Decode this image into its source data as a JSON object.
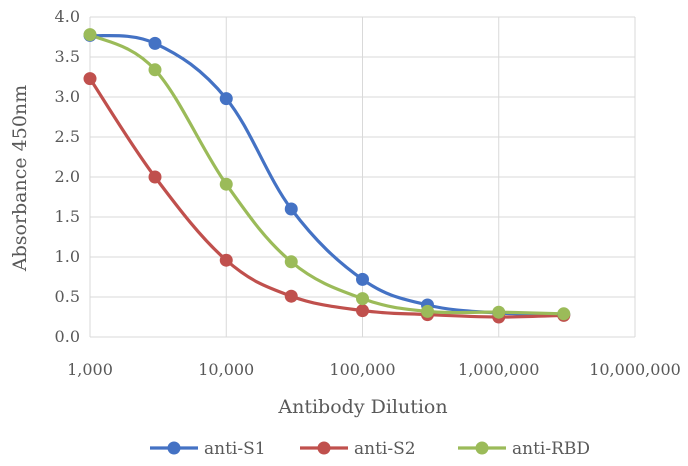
{
  "chart_data": {
    "type": "line",
    "xlabel": "Antibody Dilution",
    "ylabel": "Absorbance 450nm",
    "x_scale": "log",
    "xlim": [
      1000,
      10000000
    ],
    "ylim": [
      0,
      4
    ],
    "x_ticks": [
      1000,
      10000,
      100000,
      1000000,
      10000000
    ],
    "x_tick_labels": [
      "1,000",
      "10,000",
      "100,000",
      "1,000,000",
      "10,000,000"
    ],
    "y_ticks": [
      0,
      0.5,
      1,
      1.5,
      2,
      2.5,
      3,
      3.5,
      4
    ],
    "y_tick_labels": [
      "0.0",
      "0.5",
      "1.0",
      "1.5",
      "2.0",
      "2.5",
      "3.0",
      "3.5",
      "4.0"
    ],
    "grid": true,
    "legend_position": "bottom",
    "x": [
      1000,
      3000,
      10000,
      30000,
      100000,
      300000,
      1000000,
      3000000
    ],
    "series": [
      {
        "name": "anti-S1",
        "color": "#4472C4",
        "values": [
          3.77,
          3.67,
          2.98,
          1.6,
          0.72,
          0.4,
          0.3,
          0.28
        ]
      },
      {
        "name": "anti-S2",
        "color": "#C0504D",
        "values": [
          3.23,
          2.0,
          0.96,
          0.51,
          0.33,
          0.28,
          0.25,
          0.27
        ]
      },
      {
        "name": "anti-RBD",
        "color": "#9BBB59",
        "values": [
          3.78,
          3.34,
          1.91,
          0.94,
          0.48,
          0.32,
          0.31,
          0.29
        ]
      }
    ]
  }
}
